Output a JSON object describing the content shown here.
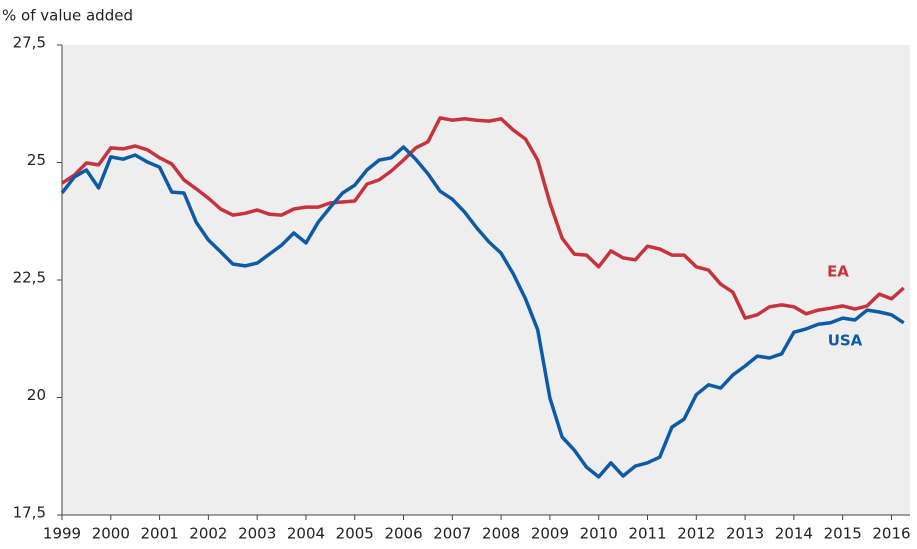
{
  "chart_data": {
    "type": "line",
    "y_label": "% of value added",
    "x": [
      1999,
      1999.25,
      1999.5,
      1999.75,
      2000,
      2000.25,
      2000.5,
      2000.75,
      2001,
      2001.25,
      2001.5,
      2001.75,
      2002,
      2002.25,
      2002.5,
      2002.75,
      2003,
      2003.25,
      2003.5,
      2003.75,
      2004,
      2004.25,
      2004.5,
      2004.75,
      2005,
      2005.25,
      2005.5,
      2005.75,
      2006,
      2006.25,
      2006.5,
      2006.75,
      2007,
      2007.25,
      2007.5,
      2007.75,
      2008,
      2008.25,
      2008.5,
      2008.75,
      2009,
      2009.25,
      2009.5,
      2009.75,
      2010,
      2010.25,
      2010.5,
      2010.75,
      2011,
      2011.25,
      2011.5,
      2011.75,
      2012,
      2012.25,
      2012.5,
      2012.75,
      2013,
      2013.25,
      2013.5,
      2013.75,
      2014,
      2014.25,
      2014.5,
      2014.75,
      2015,
      2015.25,
      2015.5,
      2015.75,
      2016,
      2016.25
    ],
    "series": [
      {
        "name": "EA",
        "color": "#c8323c",
        "values": [
          24.56,
          24.73,
          24.99,
          24.95,
          25.31,
          25.29,
          25.35,
          25.27,
          25.1,
          24.97,
          24.63,
          24.44,
          24.24,
          24.01,
          23.88,
          23.92,
          23.99,
          23.9,
          23.88,
          24.01,
          24.05,
          24.05,
          24.14,
          24.16,
          24.18,
          24.54,
          24.63,
          24.82,
          25.05,
          25.31,
          25.44,
          25.95,
          25.9,
          25.93,
          25.9,
          25.88,
          25.93,
          25.69,
          25.5,
          25.05,
          24.14,
          23.39,
          23.05,
          23.03,
          22.78,
          23.12,
          22.97,
          22.93,
          23.22,
          23.16,
          23.03,
          23.03,
          22.78,
          22.71,
          22.41,
          22.24,
          21.69,
          21.76,
          21.93,
          21.97,
          21.93,
          21.78,
          21.86,
          21.9,
          21.95,
          21.88,
          21.95,
          22.2,
          22.1,
          22.33
        ]
      },
      {
        "name": "USA",
        "color": "#0d5aa7",
        "values": [
          24.35,
          24.69,
          24.84,
          24.46,
          25.12,
          25.07,
          25.16,
          25.01,
          24.9,
          24.37,
          24.35,
          23.73,
          23.35,
          23.1,
          22.84,
          22.8,
          22.86,
          23.05,
          23.24,
          23.5,
          23.29,
          23.73,
          24.05,
          24.35,
          24.52,
          24.84,
          25.05,
          25.1,
          25.33,
          25.07,
          24.76,
          24.39,
          24.22,
          23.95,
          23.61,
          23.31,
          23.07,
          22.63,
          22.1,
          21.44,
          19.99,
          19.16,
          18.88,
          18.52,
          18.31,
          18.61,
          18.33,
          18.54,
          18.61,
          18.73,
          19.37,
          19.54,
          20.06,
          20.27,
          20.2,
          20.48,
          20.67,
          20.88,
          20.84,
          20.93,
          21.39,
          21.46,
          21.56,
          21.59,
          21.69,
          21.65,
          21.86,
          21.82,
          21.76,
          21.59
        ]
      }
    ],
    "xlim": [
      1999,
      2016.38
    ],
    "xticks": [
      1999,
      2000,
      2001,
      2002,
      2003,
      2004,
      2005,
      2006,
      2007,
      2008,
      2009,
      2010,
      2011,
      2012,
      2013,
      2014,
      2015,
      2016
    ],
    "ylim": [
      17.5,
      27.5
    ],
    "yticks": [
      {
        "value": 17.5,
        "label": "17,5"
      },
      20,
      {
        "value": 22.5,
        "label": "22,5"
      },
      25,
      {
        "value": 27.5,
        "label": "27,5"
      }
    ],
    "grid": false,
    "background": "#eeeeee"
  }
}
